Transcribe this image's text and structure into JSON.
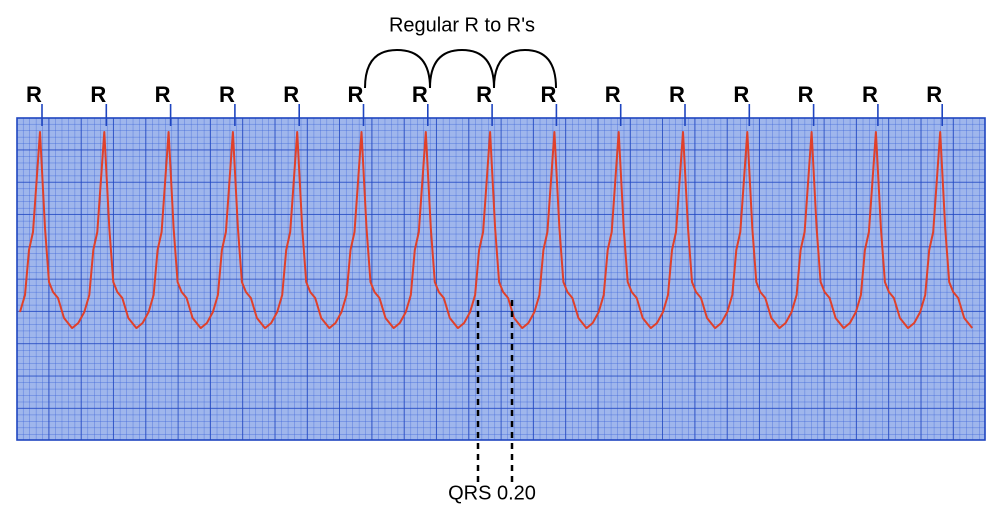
{
  "annotation": "Regular R to R's",
  "r_labels": [
    "R",
    "R",
    "R",
    "R",
    "R",
    "R",
    "R",
    "R",
    "R",
    "R",
    "R",
    "R",
    "R",
    "R",
    "R"
  ],
  "qrs_label": "QRS 0.20"
}
